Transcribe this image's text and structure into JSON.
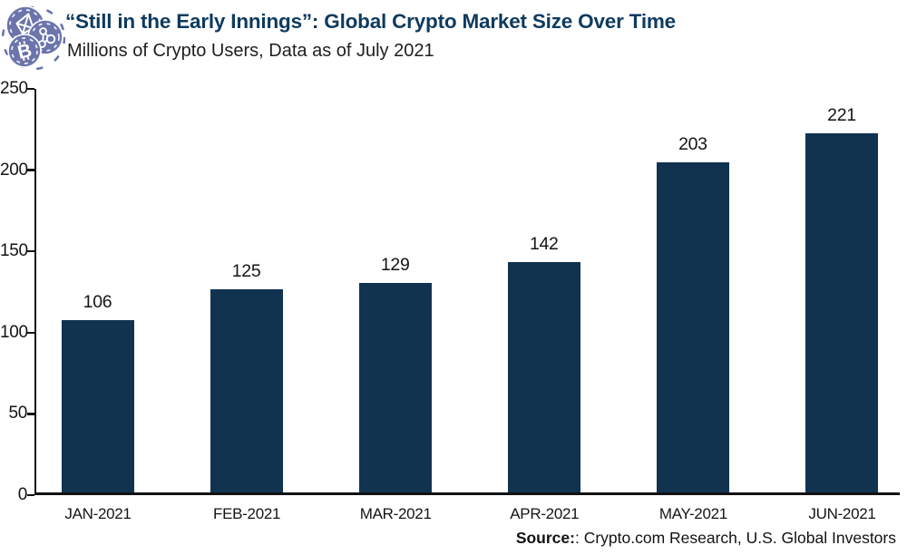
{
  "header": {
    "title": "“Still in the Early Innings”: Global Crypto Market Size Over Time",
    "subtitle": "Millions of Crypto Users, Data as of July 2021",
    "logo": "crypto-coins-logo"
  },
  "chart_data": {
    "type": "bar",
    "title": "“Still in the Early Innings”: Global Crypto Market Size Over Time",
    "subtitle": "Millions of Crypto Users, Data as of July 2021",
    "categories": [
      "JAN-2021",
      "FEB-2021",
      "MAR-2021",
      "APR-2021",
      "MAY-2021",
      "JUN-2021"
    ],
    "values": [
      106,
      125,
      129,
      142,
      203,
      221
    ],
    "xlabel": "",
    "ylabel": "",
    "ylim": [
      0,
      250
    ],
    "yticks": [
      0,
      50,
      100,
      150,
      200,
      250
    ],
    "grid": false,
    "legend": false,
    "data_labels": true,
    "bar_color": "#113350"
  },
  "footer": {
    "source_label": "Source:",
    "source_text": ": Crypto.com Research, U.S. Global Investors"
  },
  "colors": {
    "title": "#0e3a5e",
    "bar": "#113350",
    "text": "#141414",
    "axis": "#121212",
    "logo": "#6b74ab",
    "background": "#ffffff"
  }
}
